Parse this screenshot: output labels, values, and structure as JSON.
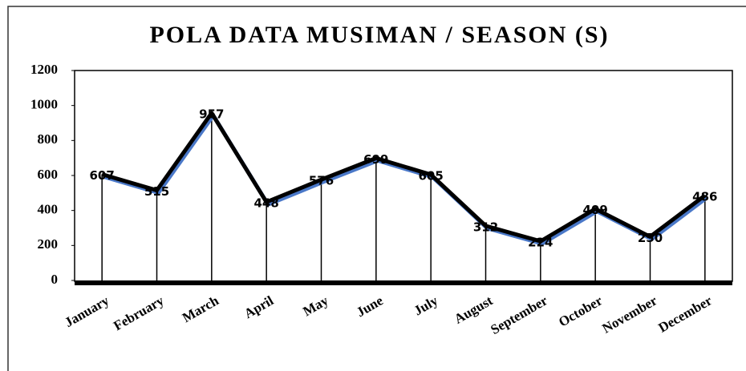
{
  "chart_data": {
    "type": "line",
    "title": "POLA DATA MUSIMAN / SEASON (S)",
    "categories": [
      "January",
      "February",
      "March",
      "April",
      "May",
      "June",
      "July",
      "August",
      "September",
      "October",
      "November",
      "December"
    ],
    "series": [
      {
        "name": "S",
        "color": "#000000",
        "values": [
          607,
          515,
          957,
          448,
          576,
          699,
          605,
          312,
          224,
          409,
          250,
          486
        ]
      }
    ],
    "ylim": [
      0,
      1200
    ],
    "yticks": [
      0,
      200,
      400,
      600,
      800,
      1000,
      1200
    ],
    "grid": false
  }
}
